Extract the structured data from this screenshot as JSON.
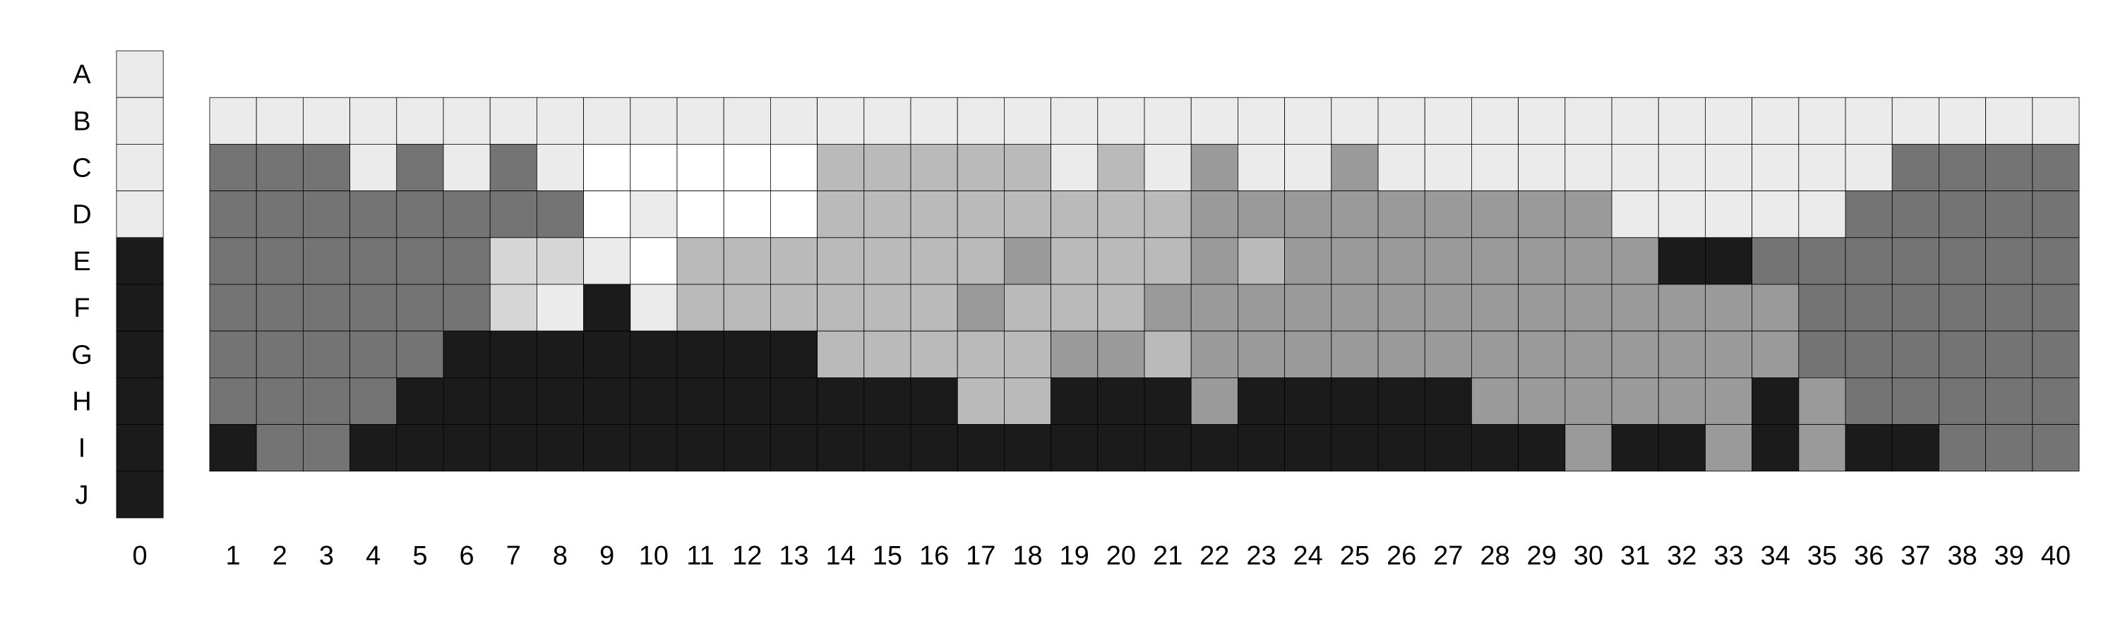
{
  "chart_data": {
    "type": "heatmap",
    "title": "",
    "xlabel": "",
    "ylabel": "",
    "row_labels": [
      "A",
      "B",
      "C",
      "D",
      "E",
      "F",
      "G",
      "H",
      "I",
      "J"
    ],
    "column0": {
      "label": "0",
      "values": [
        1,
        1,
        1,
        1,
        6,
        6,
        6,
        6,
        6,
        6
      ]
    },
    "columns": [
      "1",
      "2",
      "3",
      "4",
      "5",
      "6",
      "7",
      "8",
      "9",
      "10",
      "11",
      "12",
      "13",
      "14",
      "15",
      "16",
      "17",
      "18",
      "19",
      "20",
      "21",
      "22",
      "23",
      "24",
      "25",
      "26",
      "27",
      "28",
      "29",
      "30",
      "31",
      "32",
      "33",
      "34",
      "35",
      "36",
      "37",
      "38",
      "39",
      "40"
    ],
    "grid_rows": [
      "B",
      "C",
      "D",
      "E",
      "F",
      "G",
      "H",
      "I"
    ],
    "values": [
      [
        1,
        1,
        1,
        1,
        1,
        1,
        1,
        1,
        1,
        1,
        1,
        1,
        1,
        1,
        1,
        1,
        1,
        1,
        1,
        1,
        1,
        1,
        1,
        1,
        1,
        1,
        1,
        1,
        1,
        1,
        1,
        1,
        1,
        1,
        1,
        1,
        1,
        1,
        1,
        1
      ],
      [
        5,
        5,
        5,
        1,
        5,
        1,
        5,
        1,
        0,
        0,
        0,
        0,
        0,
        3,
        3,
        3,
        3,
        3,
        1,
        3,
        1,
        4,
        1,
        1,
        4,
        1,
        1,
        1,
        1,
        1,
        1,
        1,
        1,
        1,
        1,
        1,
        5,
        5,
        5,
        5
      ],
      [
        5,
        5,
        5,
        5,
        5,
        5,
        5,
        5,
        0,
        1,
        0,
        0,
        0,
        3,
        3,
        3,
        3,
        3,
        3,
        3,
        3,
        4,
        4,
        4,
        4,
        4,
        4,
        4,
        4,
        4,
        1,
        1,
        1,
        1,
        1,
        5,
        5,
        5,
        5,
        5
      ],
      [
        5,
        5,
        5,
        5,
        5,
        5,
        2,
        2,
        1,
        0,
        3,
        3,
        3,
        3,
        3,
        3,
        3,
        4,
        3,
        3,
        3,
        4,
        3,
        4,
        4,
        4,
        4,
        4,
        4,
        4,
        4,
        6,
        6,
        5,
        5,
        5,
        5,
        5,
        5,
        5
      ],
      [
        5,
        5,
        5,
        5,
        5,
        5,
        2,
        1,
        6,
        1,
        3,
        3,
        3,
        3,
        3,
        3,
        4,
        3,
        3,
        3,
        4,
        4,
        4,
        4,
        4,
        4,
        4,
        4,
        4,
        4,
        4,
        4,
        4,
        4,
        5,
        5,
        5,
        5,
        5,
        5
      ],
      [
        5,
        5,
        5,
        5,
        5,
        6,
        6,
        6,
        6,
        6,
        6,
        6,
        6,
        3,
        3,
        3,
        3,
        3,
        4,
        4,
        3,
        4,
        4,
        4,
        4,
        4,
        4,
        4,
        4,
        4,
        4,
        4,
        4,
        4,
        5,
        5,
        5,
        5,
        5,
        5
      ],
      [
        5,
        5,
        5,
        5,
        6,
        6,
        6,
        6,
        6,
        6,
        6,
        6,
        6,
        6,
        6,
        6,
        3,
        3,
        6,
        6,
        6,
        4,
        6,
        6,
        6,
        6,
        6,
        4,
        4,
        4,
        4,
        4,
        4,
        6,
        4,
        5,
        5,
        5,
        5,
        5
      ],
      [
        6,
        5,
        5,
        6,
        6,
        6,
        6,
        6,
        6,
        6,
        6,
        6,
        6,
        6,
        6,
        6,
        6,
        6,
        6,
        6,
        6,
        6,
        6,
        6,
        6,
        6,
        6,
        6,
        6,
        4,
        6,
        6,
        4,
        6,
        4,
        6,
        6,
        5,
        5,
        5
      ]
    ],
    "value_scale": [
      0,
      6
    ],
    "colors": [
      "#ffffff",
      "#ebebeb",
      "#d6d6d6",
      "#bababa",
      "#9a9a9a",
      "#747474",
      "#1b1b1b"
    ],
    "grid": true,
    "legend": "none"
  }
}
